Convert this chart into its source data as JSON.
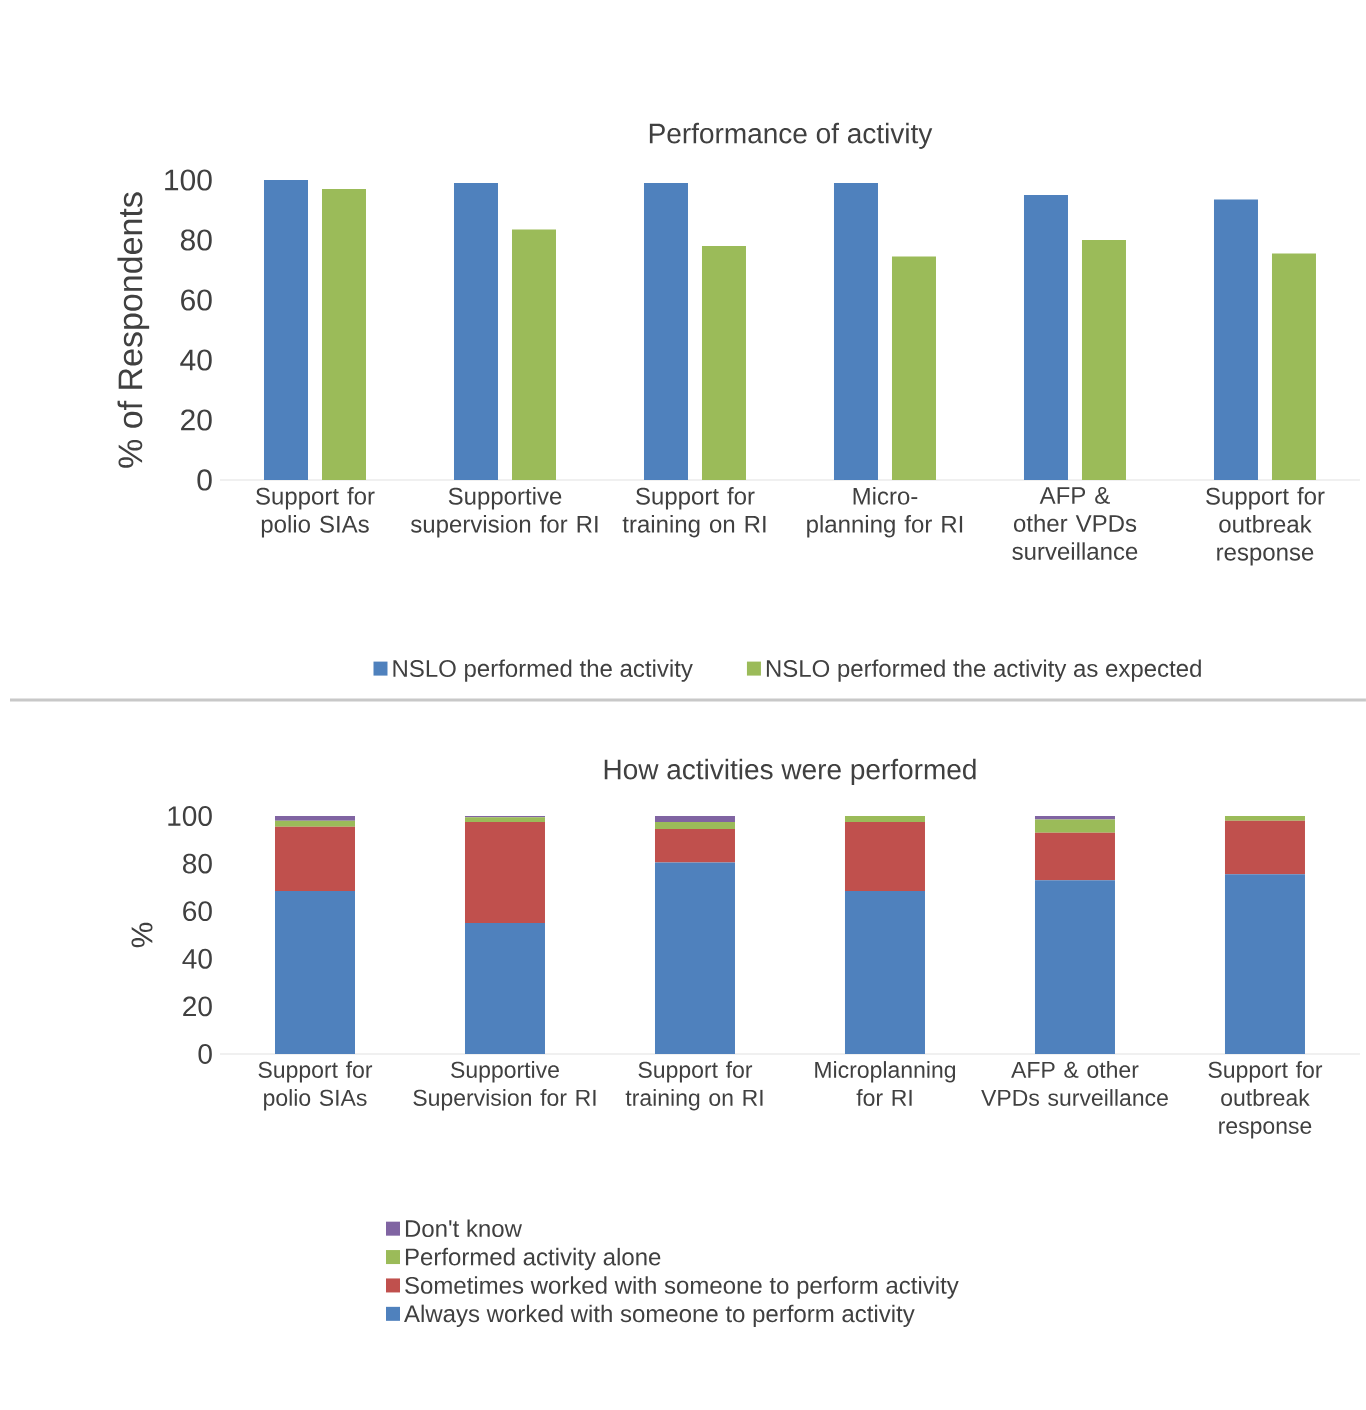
{
  "chart_data": [
    {
      "type": "bar",
      "title": "Performance of activity",
      "ylabel": "% of Respondents",
      "categories": [
        "Support for polio SIAs",
        "Supportive supervision for RI",
        "Support for training on RI",
        "Micro-planning for RI",
        "AFP & other VPDs surveillance",
        "Support for outbreak response"
      ],
      "series": [
        {
          "name": "NSLO performed the activity",
          "color": "#4f81bd",
          "values": [
            100,
            99,
            99,
            99,
            95,
            93.5
          ]
        },
        {
          "name": "NSLO performed the activity as expected",
          "color": "#9bbb59",
          "values": [
            97,
            83.5,
            78,
            74.5,
            80,
            75.5
          ]
        }
      ],
      "ylim": [
        0,
        100
      ],
      "yticks": [
        0,
        20,
        40,
        60,
        80,
        100
      ],
      "legend": "bottom"
    },
    {
      "type": "bar",
      "stacked": true,
      "title": "How activities were performed",
      "ylabel": "%",
      "categories": [
        "Support for polio SIAs",
        "Supportive Supervision for RI",
        "Support for training on RI",
        "Microplanning for RI",
        "AFP & other VPDs surveillance",
        "Support for outbreak response"
      ],
      "series": [
        {
          "name": "Always worked with someone to perform activity",
          "color": "#4f81bd",
          "values": [
            68.5,
            55,
            80.5,
            68.5,
            73,
            75.5
          ]
        },
        {
          "name": "Sometimes worked with someone to perform activity",
          "color": "#c0504d",
          "values": [
            27,
            42.5,
            14,
            29,
            20,
            22.5
          ]
        },
        {
          "name": "Performed activity alone",
          "color": "#9bbb59",
          "values": [
            2.5,
            2,
            3,
            2.5,
            5.5,
            2
          ]
        },
        {
          "name": "Don't know",
          "color": "#8064a2",
          "values": [
            2,
            0.5,
            2.5,
            0,
            1.5,
            0
          ]
        }
      ],
      "ylim": [
        0,
        100
      ],
      "yticks": [
        0,
        20,
        40,
        60,
        80,
        100
      ],
      "legend": "bottom"
    }
  ]
}
